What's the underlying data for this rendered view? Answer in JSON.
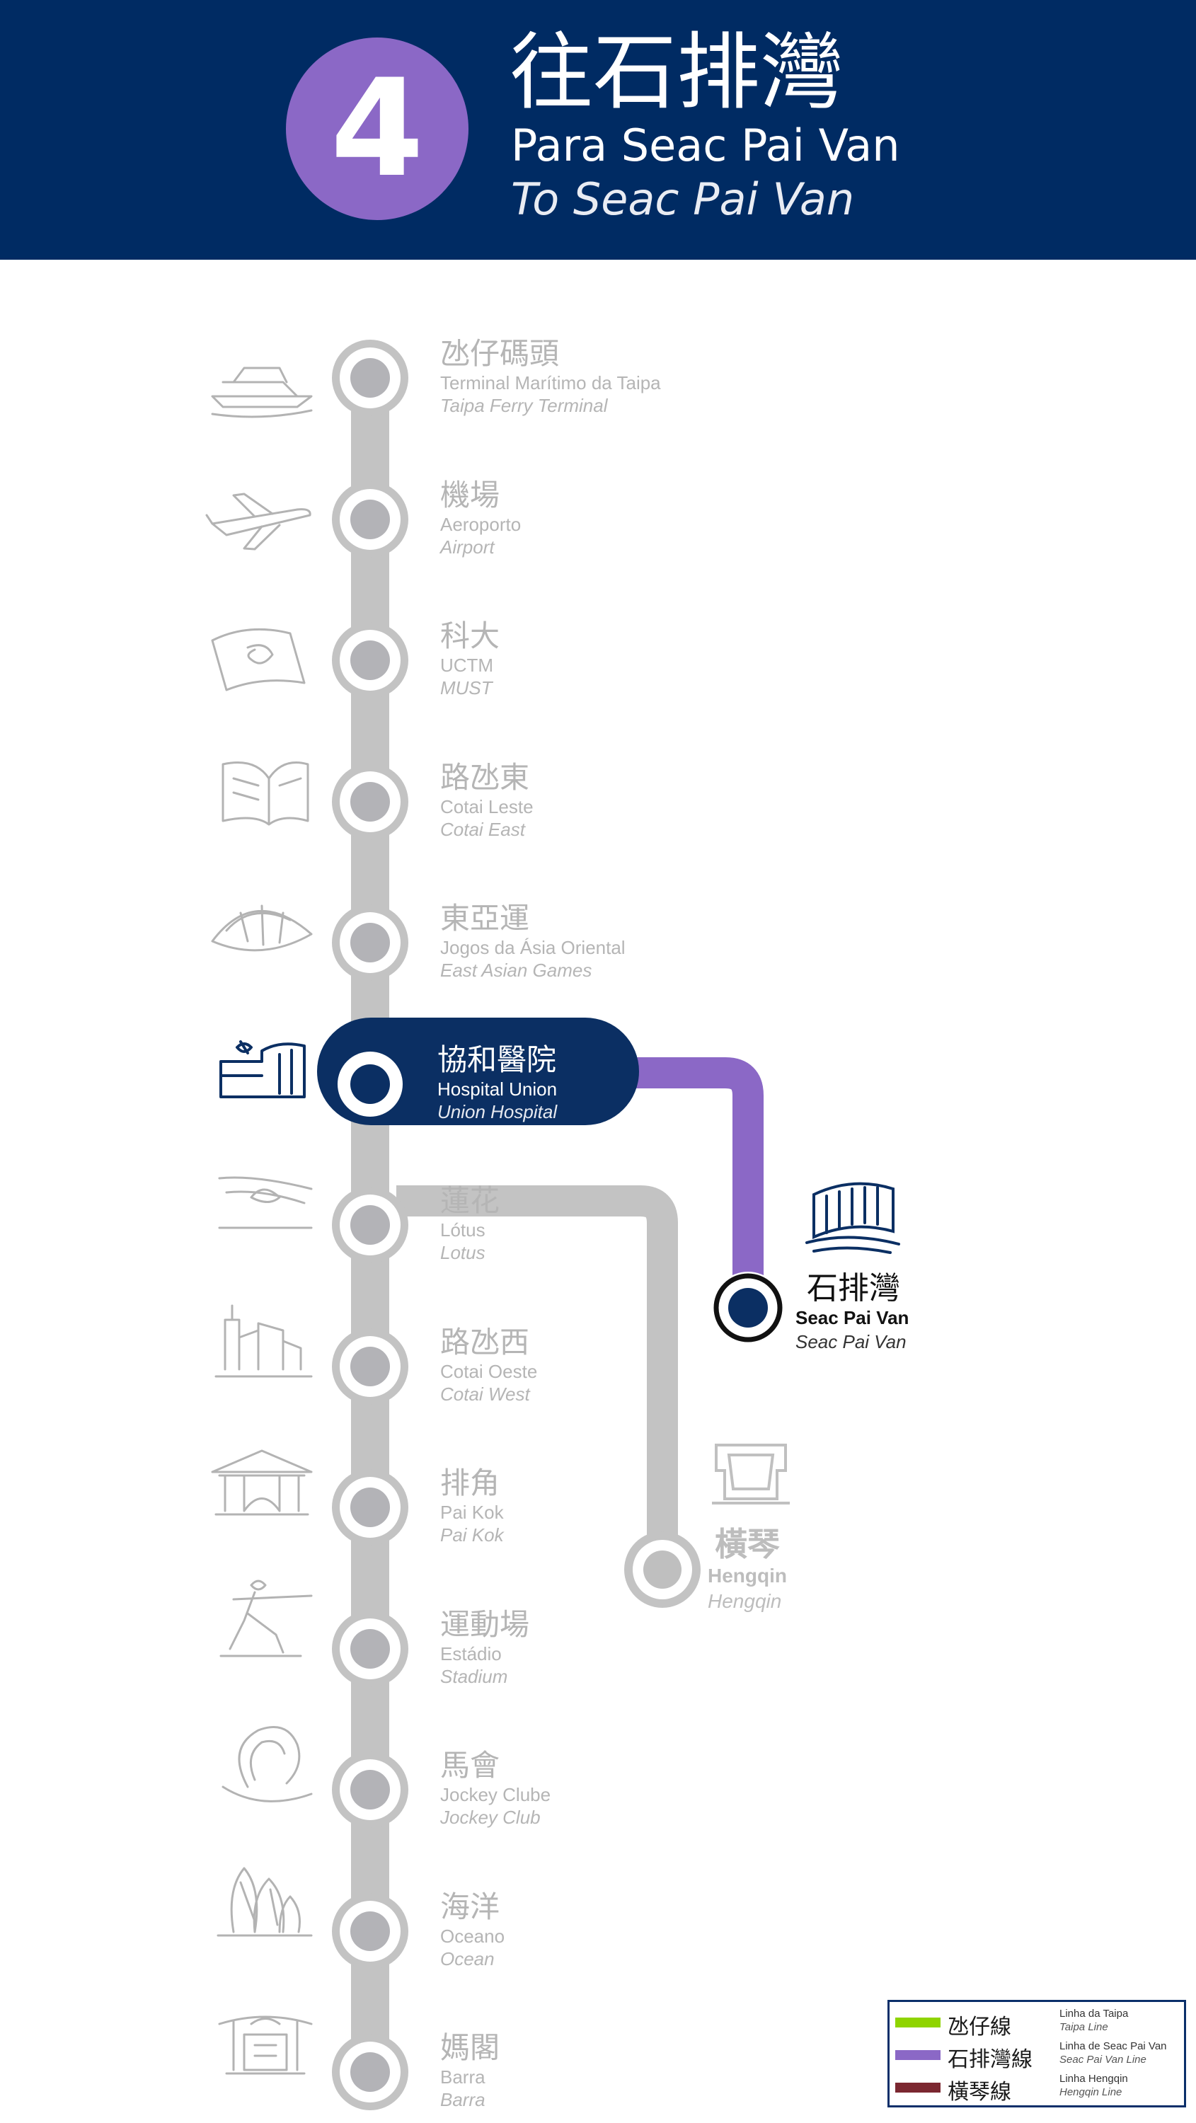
{
  "header": {
    "route_number": "4",
    "destination_zh": "往石排灣",
    "destination_pt": "Para Seac Pai Van",
    "destination_en": "To Seac Pai Van"
  },
  "colors": {
    "header_bg": "#002b63",
    "route_badge": "#8b68c6",
    "inactive_line": "#c3c3c3",
    "inactive_text": "#b0b0b0",
    "current_station": "#0b2f63",
    "taipa_line": "#8fd400",
    "seac_pai_van_line": "#8b68c6",
    "hengqin_line": "#7b2730"
  },
  "stations": [
    {
      "zh": "氹仔碼頭",
      "pt": "Terminal Marítimo da Taipa",
      "en": "Taipa Ferry Terminal",
      "icon": "ferry-icon"
    },
    {
      "zh": "機場",
      "pt": "Aeroporto",
      "en": "Airport",
      "icon": "airplane-icon"
    },
    {
      "zh": "科大",
      "pt": "UCTM",
      "en": "MUST",
      "icon": "university-book-icon"
    },
    {
      "zh": "路氹東",
      "pt": "Cotai Leste",
      "en": "Cotai East",
      "icon": "open-book-building-icon"
    },
    {
      "zh": "東亞運",
      "pt": "Jogos da Ásia Oriental",
      "en": "East Asian Games",
      "icon": "dome-stadium-icon"
    },
    {
      "zh": "協和醫院",
      "pt": "Hospital Union",
      "en": "Union Hospital",
      "icon": "hospital-icon",
      "current": true
    },
    {
      "zh": "蓮花",
      "pt": "Lótus",
      "en": "Lotus",
      "icon": "lotus-bridge-icon"
    },
    {
      "zh": "路氹西",
      "pt": "Cotai Oeste",
      "en": "Cotai West",
      "icon": "skyline-icon"
    },
    {
      "zh": "排角",
      "pt": "Pai Kok",
      "en": "Pai Kok",
      "icon": "pavilion-icon"
    },
    {
      "zh": "運動場",
      "pt": "Estádio",
      "en": "Stadium",
      "icon": "javelin-athlete-icon"
    },
    {
      "zh": "馬會",
      "pt": "Jockey Clube",
      "en": "Jockey Club",
      "icon": "horseshoe-icon"
    },
    {
      "zh": "海洋",
      "pt": "Oceano",
      "en": "Ocean",
      "icon": "ocean-tower-icon"
    },
    {
      "zh": "媽閣",
      "pt": "Barra",
      "en": "Barra",
      "icon": "temple-icon"
    }
  ],
  "branch_seac_pai_van": {
    "zh": "石排灣",
    "pt": "Seac Pai Van",
    "en": "Seac Pai Van",
    "icon": "seac-pai-van-building-icon"
  },
  "branch_hengqin": {
    "zh": "橫琴",
    "pt": "Hengqin",
    "en": "Hengqin",
    "icon": "hengqin-gate-icon"
  },
  "legend": [
    {
      "zh": "氹仔線",
      "pt": "Linha da Taipa",
      "en": "Taipa Line",
      "color": "#8fd400"
    },
    {
      "zh": "石排灣線",
      "pt": "Linha de Seac Pai Van",
      "en": "Seac Pai Van Line",
      "color": "#8b68c6"
    },
    {
      "zh": "橫琴線",
      "pt": "Linha Hengqin",
      "en": "Hengqin Line",
      "color": "#7b2730"
    }
  ]
}
